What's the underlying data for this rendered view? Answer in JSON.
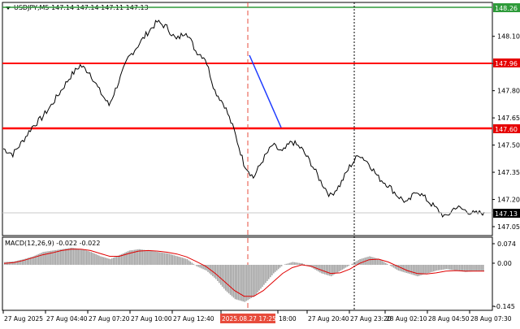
{
  "header": {
    "symbol_line": "USDJPY,M5  147.14 147.14 147.11 147.13"
  },
  "price_axis": {
    "ticks": [
      "148.10",
      "147.95",
      "147.80",
      "147.65",
      "147.50",
      "147.35",
      "147.20",
      "147.05"
    ],
    "labels": {
      "top": "148.26",
      "upper_red": "147.96",
      "lower_red": "147.60",
      "current": "147.13"
    }
  },
  "macd": {
    "title": "MACD(12,26,9) -0.022 -0.022",
    "axis": {
      "top": "0.074",
      "zero": "0.00",
      "bottom": "-0.145"
    }
  },
  "time_axis": {
    "labels": [
      "27 Aug 2025",
      "27 Aug 04:40",
      "27 Aug 07:20",
      "27 Aug 10:00",
      "27 Aug 12:40",
      "2025.08.27 17:25",
      "18:00",
      "27 Aug 20:40",
      "27 Aug 23:20",
      "28 Aug 02:10",
      "28 Aug 04:50",
      "28 Aug 07:30"
    ]
  },
  "colors": {
    "green_line": "#2e9b3a",
    "red_line": "#ff0000",
    "trend_line": "#1f3cff",
    "price_line": "#000000",
    "macd_hist": "#a6a6a6",
    "macd_signal": "#e00000",
    "current_price_bg": "#000000",
    "green_label_bg": "#2e9b3a",
    "red_label_bg": "#e60000",
    "time_marker_bg": "#e74c3c"
  },
  "chart_data": {
    "type": "line",
    "title": "USDJPY,M5  147.14 147.14 147.11 147.13",
    "ylim": [
      147.0,
      148.28
    ],
    "levels": [
      {
        "name": "148.26",
        "value": 148.26,
        "color": "green"
      },
      {
        "name": "147.96",
        "value": 147.96,
        "color": "red"
      },
      {
        "name": "147.60",
        "value": 147.6,
        "color": "red"
      }
    ],
    "price_series": {
      "x_index": [
        0,
        4,
        8,
        12,
        16,
        20,
        24,
        28,
        32,
        36,
        40,
        44,
        48,
        52,
        56,
        60,
        64,
        68,
        72,
        76,
        80,
        84,
        88,
        92,
        96,
        100,
        104,
        108,
        112,
        116,
        120,
        124,
        128,
        132,
        136,
        140,
        144,
        148,
        152,
        156,
        160,
        164,
        168,
        172,
        176,
        180,
        184,
        188,
        192,
        196,
        200
      ],
      "values": [
        147.48,
        147.45,
        147.52,
        147.6,
        147.65,
        147.72,
        147.8,
        147.88,
        147.94,
        147.9,
        147.8,
        147.72,
        147.85,
        147.98,
        148.05,
        148.12,
        148.18,
        148.15,
        148.08,
        148.13,
        148.02,
        147.98,
        147.8,
        147.72,
        147.58,
        147.4,
        147.32,
        147.42,
        147.5,
        147.46,
        147.52,
        147.48,
        147.4,
        147.3,
        147.22,
        147.28,
        147.38,
        147.45,
        147.4,
        147.32,
        147.28,
        147.22,
        147.18,
        147.25,
        147.2,
        147.15,
        147.1,
        147.16,
        147.14,
        147.12,
        147.13
      ]
    },
    "macd_series": {
      "ylim": [
        -0.145,
        0.074
      ],
      "histogram": [
        0.01,
        0.012,
        0.02,
        0.03,
        0.045,
        0.05,
        0.055,
        0.06,
        0.055,
        0.045,
        0.03,
        0.02,
        0.035,
        0.05,
        0.055,
        0.05,
        0.045,
        0.04,
        0.03,
        0.02,
        -0.005,
        -0.02,
        -0.05,
        -0.09,
        -0.12,
        -0.13,
        -0.11,
        -0.07,
        -0.03,
        0.0,
        0.01,
        0.005,
        -0.01,
        -0.03,
        -0.04,
        -0.02,
        0.0,
        0.02,
        0.03,
        0.02,
        0.0,
        -0.02,
        -0.03,
        -0.04,
        -0.03,
        -0.02,
        -0.015,
        -0.02,
        -0.025,
        -0.022,
        -0.022
      ],
      "signal": [
        0.005,
        0.008,
        0.015,
        0.025,
        0.035,
        0.042,
        0.05,
        0.055,
        0.055,
        0.05,
        0.04,
        0.03,
        0.03,
        0.04,
        0.048,
        0.05,
        0.048,
        0.044,
        0.038,
        0.028,
        0.012,
        -0.005,
        -0.03,
        -0.06,
        -0.09,
        -0.11,
        -0.11,
        -0.09,
        -0.06,
        -0.03,
        -0.01,
        0.0,
        -0.005,
        -0.018,
        -0.03,
        -0.028,
        -0.015,
        0.005,
        0.018,
        0.02,
        0.01,
        -0.005,
        -0.02,
        -0.03,
        -0.032,
        -0.028,
        -0.022,
        -0.02,
        -0.022,
        -0.022,
        -0.022
      ]
    }
  }
}
